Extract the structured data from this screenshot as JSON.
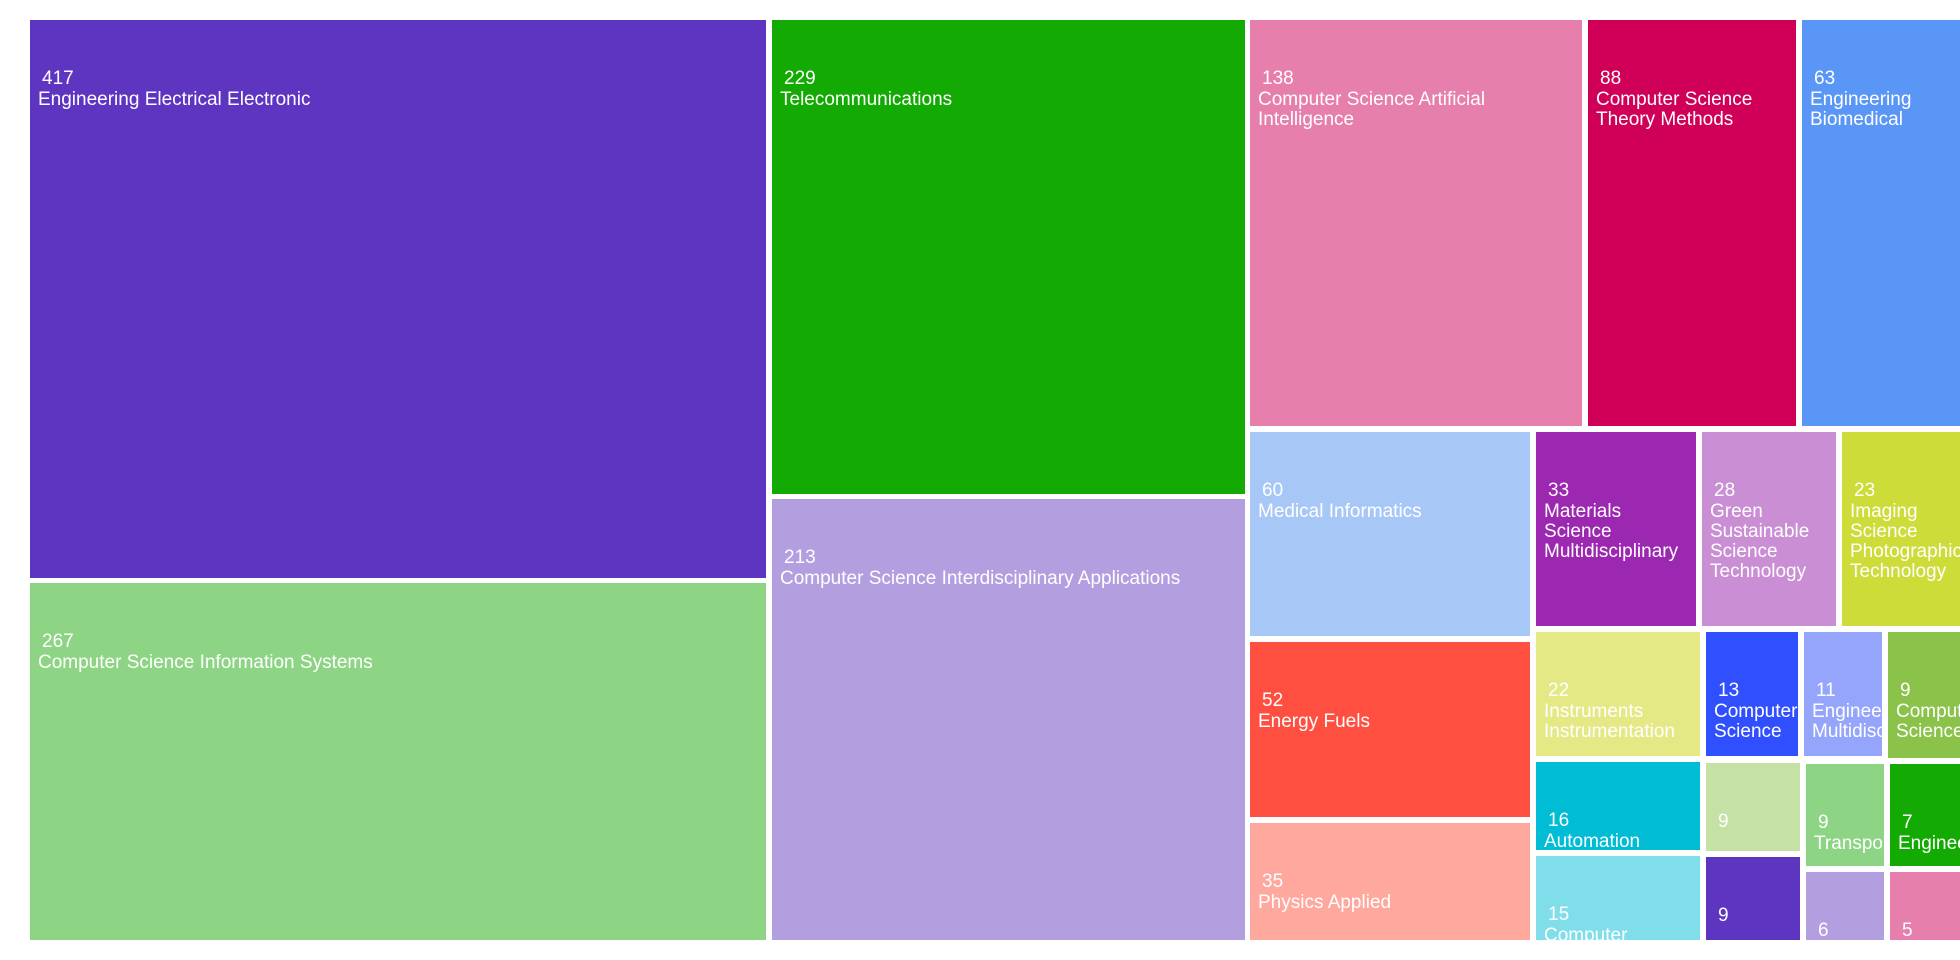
{
  "chart_data": {
    "type": "treemap",
    "title": "",
    "cells": [
      {
        "value": 417,
        "label": "Engineering Electrical Electronic",
        "color": "#5e35c1"
      },
      {
        "value": 267,
        "label": "Computer Science Information Systems",
        "color": "#8dd584"
      },
      {
        "value": 229,
        "label": "Telecommunications",
        "color": "#14aa04"
      },
      {
        "value": 213,
        "label": "Computer Science Interdisciplinary Applications",
        "color": "#b39fe0"
      },
      {
        "value": 138,
        "label": "Computer Science Artificial Intelligence",
        "color": "#e67fab"
      },
      {
        "value": 88,
        "label": "Computer Science Theory Methods",
        "color": "#d00058"
      },
      {
        "value": 63,
        "label": "Engineering Biomedical",
        "color": "#5996f5"
      },
      {
        "value": 60,
        "label": "Medical Informatics",
        "color": "#a7c7f7"
      },
      {
        "value": 52,
        "label": "Energy Fuels",
        "color": "#ff4f40"
      },
      {
        "value": 35,
        "label": "Physics Applied",
        "color": "#ffa89e"
      },
      {
        "value": 33,
        "label": "Materials Science Multidisciplinary",
        "color": "#9c27b0"
      },
      {
        "value": 28,
        "label": "Green Sustainable Science Technology",
        "color": "#ca8ed4"
      },
      {
        "value": 23,
        "label": "Imaging Science Photographic Technology",
        "color": "#cddc39"
      },
      {
        "value": 22,
        "label": "Instruments Instrumentation",
        "color": "#e4e985"
      },
      {
        "value": 16,
        "label": "Automation",
        "color": "#00bcd4"
      },
      {
        "value": 15,
        "label": "Computer",
        "color": "#80deea"
      },
      {
        "value": 13,
        "label": "Computer Science",
        "color": "#304ffe"
      },
      {
        "value": 11,
        "label": "Engineering Multidisciplinary",
        "color": "#94a5fb"
      },
      {
        "value": 9,
        "label": "Computer Science",
        "color": "#8bc34a"
      },
      {
        "value": 9,
        "label": "",
        "color": "#c5e1a5"
      },
      {
        "value": 9,
        "label": "Transportation",
        "color": "#8dd584"
      },
      {
        "value": 7,
        "label": "Engineering",
        "color": "#14aa04"
      },
      {
        "value": 9,
        "label": "",
        "color": "#5e35c1"
      },
      {
        "value": 6,
        "label": "",
        "color": "#b39fe0"
      },
      {
        "value": 5,
        "label": "",
        "color": "#e67fab"
      }
    ]
  }
}
